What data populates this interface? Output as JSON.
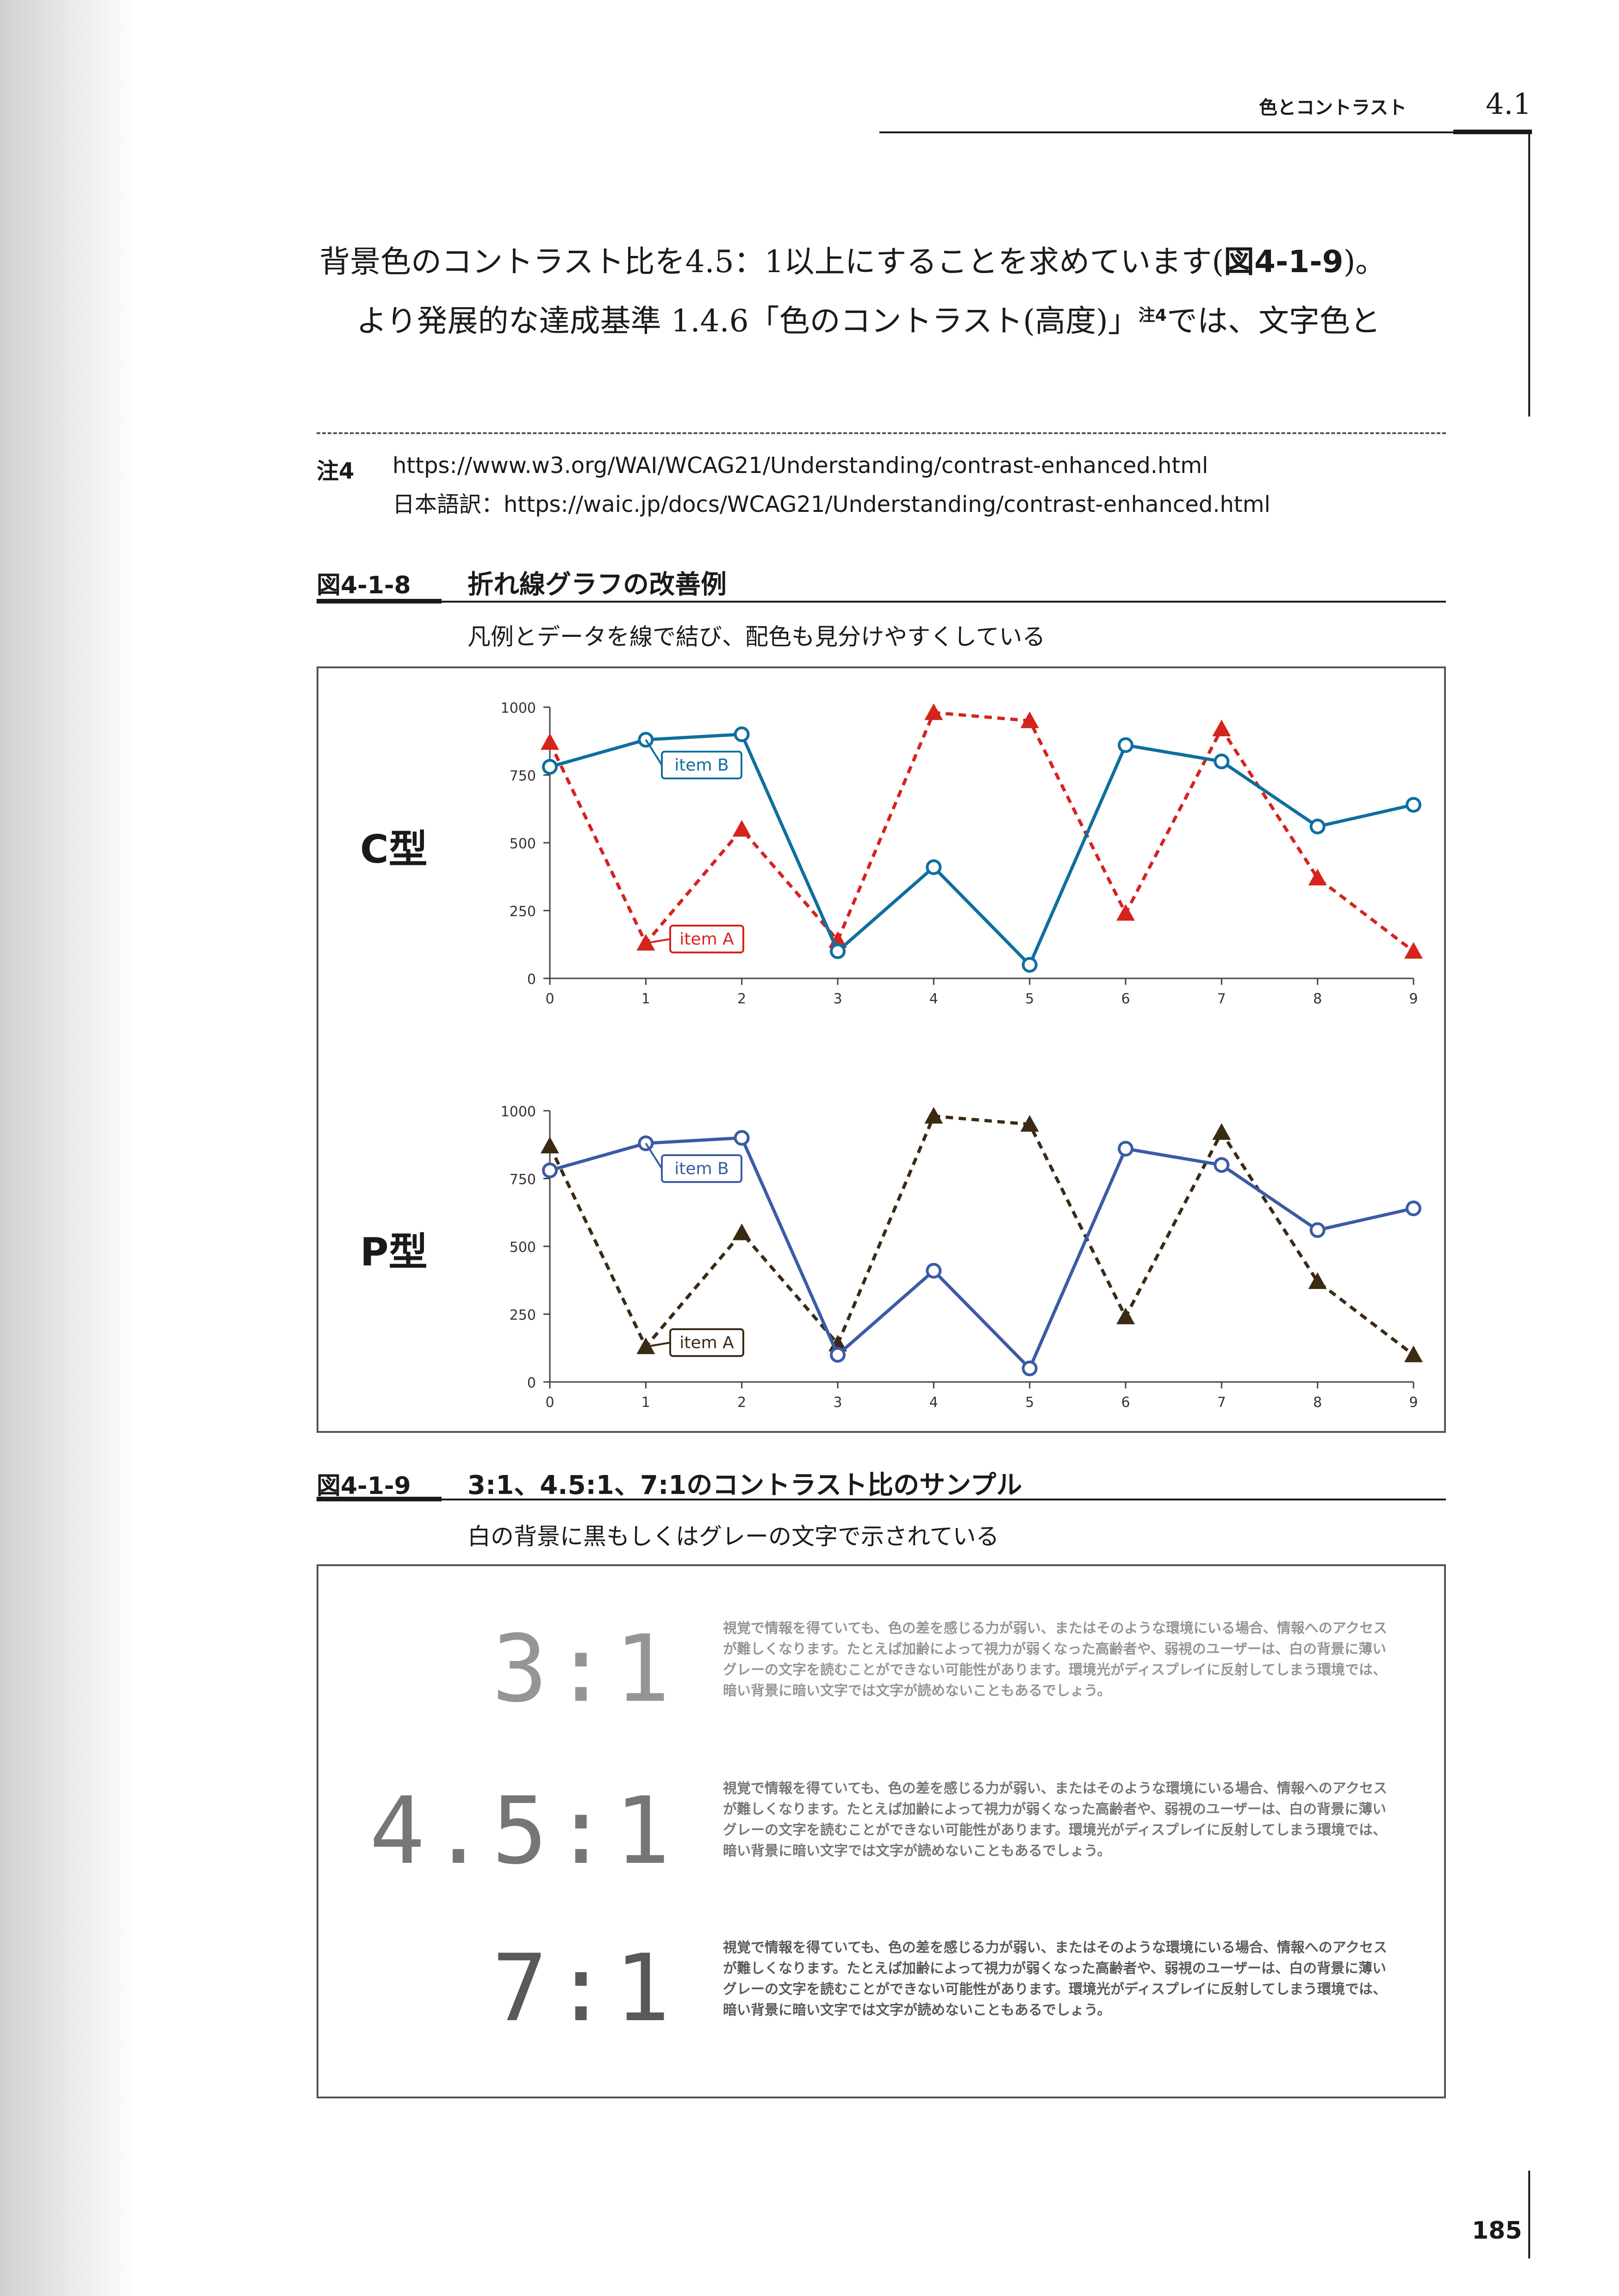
{
  "header": {
    "running_title": "色とコントラスト",
    "section": "4.1"
  },
  "body": {
    "line1_text": "背景色のコントラスト比を4.5：1以上にすることを求めています(",
    "line1_ref": "図4-1-9",
    "line1_end": ")。",
    "line2_text": "より発展的な達成基準 1.4.6「色のコントラスト(高度)」",
    "line2_note_ref": "注4",
    "line2_end": "では、文字色と"
  },
  "note": {
    "label": "注4",
    "url": "https://www.w3.org/WAI/WCAG21/Understanding/contrast-enhanced.html",
    "japanese_line": "日本語訳：https://waic.jp/docs/WCAG21/Understanding/contrast-enhanced.html"
  },
  "figure_8": {
    "label": "図4-1-8",
    "title": "折れ線グラフの改善例",
    "caption": "凡例とデータを線で結び、配色も見分けやすくしている",
    "panels": [
      {
        "name": "C型",
        "color_a": "#d5231e",
        "color_b": "#0f6f9e"
      },
      {
        "name": "P型",
        "color_a": "#3b2a14",
        "color_b": "#3b5ba5"
      }
    ]
  },
  "chart_data": [
    {
      "type": "line",
      "label": "C型",
      "x": [
        0,
        1,
        2,
        3,
        4,
        5,
        6,
        7,
        8,
        9
      ],
      "x_ticks": [
        "0",
        "1",
        "2",
        "3",
        "4",
        "5",
        "6",
        "7",
        "8",
        "9"
      ],
      "y_ticks": [
        "0",
        "250",
        "500",
        "750",
        "1000"
      ],
      "ylim": [
        0,
        1000
      ],
      "series": [
        {
          "name": "item A",
          "marker": "triangle",
          "style": "dashed",
          "color": "#d5231e",
          "values": [
            870,
            130,
            550,
            140,
            980,
            950,
            240,
            920,
            370,
            100
          ]
        },
        {
          "name": "item B",
          "marker": "circle",
          "style": "solid",
          "color": "#0f6f9e",
          "values": [
            780,
            880,
            900,
            100,
            410,
            50,
            860,
            800,
            560,
            640
          ]
        }
      ]
    },
    {
      "type": "line",
      "label": "P型",
      "x": [
        0,
        1,
        2,
        3,
        4,
        5,
        6,
        7,
        8,
        9
      ],
      "x_ticks": [
        "0",
        "1",
        "2",
        "3",
        "4",
        "5",
        "6",
        "7",
        "8",
        "9"
      ],
      "y_ticks": [
        "0",
        "250",
        "500",
        "750",
        "1000"
      ],
      "ylim": [
        0,
        1000
      ],
      "series": [
        {
          "name": "item A",
          "marker": "triangle",
          "style": "dashed",
          "color": "#3b2a14",
          "values": [
            870,
            130,
            550,
            140,
            980,
            950,
            240,
            920,
            370,
            100
          ]
        },
        {
          "name": "item B",
          "marker": "circle",
          "style": "solid",
          "color": "#3b5ba5",
          "values": [
            780,
            880,
            900,
            100,
            410,
            50,
            860,
            800,
            560,
            640
          ]
        }
      ]
    }
  ],
  "figure_9": {
    "label": "図4-1-9",
    "title": "3:1、4.5:1、7:1のコントラスト比のサンプル",
    "caption": "白の背景に黒もしくはグレーの文字で示されている",
    "samples": [
      {
        "ratio": "3:1",
        "color": "#959595",
        "text": "視覚で情報を得ていても、色の差を感じる力が弱い、またはそのような環境にいる場合、情報へのアクセスが難しくなります。たとえば加齢によって視力が弱くなった高齢者や、弱視のユーザーは、白の背景に薄いグレーの文字を読むことができない可能性があります。環境光がディスプレイに反射してしまう環境では、暗い背景に暗い文字では文字が読めないこともあるでしょう。"
      },
      {
        "ratio": "4.5:1",
        "color": "#767676",
        "text": "視覚で情報を得ていても、色の差を感じる力が弱い、またはそのような環境にいる場合、情報へのアクセスが難しくなります。たとえば加齢によって視力が弱くなった高齢者や、弱視のユーザーは、白の背景に薄いグレーの文字を読むことができない可能性があります。環境光がディスプレイに反射してしまう環境では、暗い背景に暗い文字では文字が読めないこともあるでしょう。"
      },
      {
        "ratio": "7:1",
        "color": "#595959",
        "text": "視覚で情報を得ていても、色の差を感じる力が弱い、またはそのような環境にいる場合、情報へのアクセスが難しくなります。たとえば加齢によって視力が弱くなった高齢者や、弱視のユーザーは、白の背景に薄いグレーの文字を読むことができない可能性があります。環境光がディスプレイに反射してしまう環境では、暗い背景に暗い文字では文字が読めないこともあるでしょう。"
      }
    ]
  },
  "page_number": "185"
}
